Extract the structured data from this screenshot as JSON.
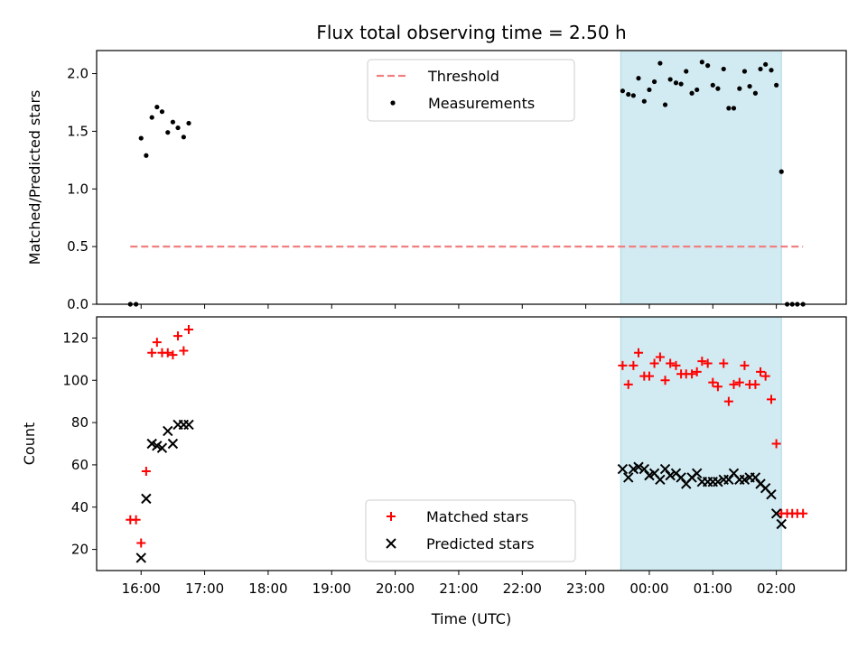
{
  "figure": {
    "title": "Flux total observing time = 2.50 h",
    "xlabel": "Time (UTC)",
    "x_tick_labels": [
      "16:00",
      "17:00",
      "18:00",
      "19:00",
      "20:00",
      "21:00",
      "22:00",
      "23:00",
      "00:00",
      "01:00",
      "02:00"
    ]
  },
  "colors": {
    "threshold": "#f08080",
    "measurements": "#000000",
    "matched": "#ff0000",
    "predicted": "#000000",
    "span_fill": "#add8e6"
  },
  "chart_data": [
    {
      "type": "scatter",
      "ylabel": "Matched/Predicted stars",
      "x_unit": "hours after 16:00 UTC",
      "xlim": [
        -0.7,
        11.1
      ],
      "ylim": [
        0,
        2.2
      ],
      "y_ticks": [
        0.0,
        0.5,
        1.0,
        1.5,
        2.0
      ],
      "y_tick_labels": [
        "0.0",
        "0.5",
        "1.0",
        "1.5",
        "2.0"
      ],
      "observing_span": [
        7.55,
        10.08
      ],
      "legend": {
        "position": "top-center",
        "entries": [
          "Threshold",
          "Measurements"
        ]
      },
      "series": [
        {
          "name": "Threshold",
          "kind": "dashed-line",
          "x": [
            -0.17,
            10.42
          ],
          "y": [
            0.5,
            0.5
          ]
        },
        {
          "name": "Measurements",
          "kind": "dot",
          "points": [
            [
              -0.17,
              0.0
            ],
            [
              -0.08,
              0.0
            ],
            [
              0.0,
              1.44
            ],
            [
              0.08,
              1.29
            ],
            [
              0.17,
              1.62
            ],
            [
              0.25,
              1.71
            ],
            [
              0.33,
              1.67
            ],
            [
              0.42,
              1.49
            ],
            [
              0.5,
              1.58
            ],
            [
              0.58,
              1.53
            ],
            [
              0.67,
              1.45
            ],
            [
              0.75,
              1.57
            ],
            [
              7.58,
              1.85
            ],
            [
              7.67,
              1.82
            ],
            [
              7.75,
              1.81
            ],
            [
              7.83,
              1.96
            ],
            [
              7.92,
              1.76
            ],
            [
              8.0,
              1.86
            ],
            [
              8.08,
              1.93
            ],
            [
              8.17,
              2.09
            ],
            [
              8.25,
              1.73
            ],
            [
              8.33,
              1.95
            ],
            [
              8.42,
              1.92
            ],
            [
              8.5,
              1.91
            ],
            [
              8.58,
              2.02
            ],
            [
              8.67,
              1.83
            ],
            [
              8.75,
              1.86
            ],
            [
              8.83,
              2.1
            ],
            [
              8.92,
              2.07
            ],
            [
              9.0,
              1.9
            ],
            [
              9.08,
              1.87
            ],
            [
              9.17,
              2.04
            ],
            [
              9.25,
              1.7
            ],
            [
              9.33,
              1.7
            ],
            [
              9.42,
              1.87
            ],
            [
              9.5,
              2.02
            ],
            [
              9.58,
              1.89
            ],
            [
              9.67,
              1.83
            ],
            [
              9.75,
              2.04
            ],
            [
              9.83,
              2.08
            ],
            [
              9.92,
              2.03
            ],
            [
              10.0,
              1.9
            ],
            [
              10.08,
              1.15
            ],
            [
              10.17,
              0.0
            ],
            [
              10.25,
              0.0
            ],
            [
              10.33,
              0.0
            ],
            [
              10.42,
              0.0
            ]
          ]
        }
      ]
    },
    {
      "type": "scatter",
      "ylabel": "Count",
      "x_unit": "hours after 16:00 UTC",
      "xlim": [
        -0.7,
        11.1
      ],
      "ylim": [
        10,
        130
      ],
      "y_ticks": [
        20,
        40,
        60,
        80,
        100,
        120
      ],
      "y_tick_labels": [
        "20",
        "40",
        "60",
        "80",
        "100",
        "120"
      ],
      "observing_span": [
        7.55,
        10.08
      ],
      "legend": {
        "position": "lower-center",
        "entries": [
          "Matched stars",
          "Predicted stars"
        ]
      },
      "series": [
        {
          "name": "Matched stars",
          "kind": "plus",
          "points": [
            [
              -0.17,
              34
            ],
            [
              -0.08,
              34
            ],
            [
              0.0,
              23
            ],
            [
              0.08,
              57
            ],
            [
              0.17,
              113
            ],
            [
              0.25,
              118
            ],
            [
              0.33,
              113
            ],
            [
              0.42,
              113
            ],
            [
              0.5,
              112
            ],
            [
              0.58,
              121
            ],
            [
              0.67,
              114
            ],
            [
              0.75,
              124
            ],
            [
              7.58,
              107
            ],
            [
              7.67,
              98
            ],
            [
              7.75,
              107
            ],
            [
              7.83,
              113
            ],
            [
              7.92,
              102
            ],
            [
              8.0,
              102
            ],
            [
              8.08,
              108
            ],
            [
              8.17,
              111
            ],
            [
              8.25,
              100
            ],
            [
              8.33,
              108
            ],
            [
              8.42,
              107
            ],
            [
              8.5,
              103
            ],
            [
              8.58,
              103
            ],
            [
              8.67,
              103
            ],
            [
              8.75,
              104
            ],
            [
              8.83,
              109
            ],
            [
              8.92,
              108
            ],
            [
              9.0,
              99
            ],
            [
              9.08,
              97
            ],
            [
              9.17,
              108
            ],
            [
              9.25,
              90
            ],
            [
              9.33,
              98
            ],
            [
              9.42,
              99
            ],
            [
              9.5,
              107
            ],
            [
              9.58,
              98
            ],
            [
              9.67,
              98
            ],
            [
              9.75,
              104
            ],
            [
              9.83,
              102
            ],
            [
              9.92,
              91
            ],
            [
              10.0,
              70
            ],
            [
              10.08,
              37
            ],
            [
              10.17,
              37
            ],
            [
              10.25,
              37
            ],
            [
              10.33,
              37
            ],
            [
              10.42,
              37
            ]
          ]
        },
        {
          "name": "Predicted stars",
          "kind": "x",
          "points": [
            [
              0.0,
              16
            ],
            [
              0.08,
              44
            ],
            [
              0.17,
              70
            ],
            [
              0.25,
              69
            ],
            [
              0.33,
              68
            ],
            [
              0.42,
              76
            ],
            [
              0.5,
              70
            ],
            [
              0.58,
              79
            ],
            [
              0.67,
              79
            ],
            [
              0.75,
              79
            ],
            [
              7.58,
              58
            ],
            [
              7.67,
              54
            ],
            [
              7.75,
              58
            ],
            [
              7.83,
              59
            ],
            [
              7.92,
              58
            ],
            [
              8.0,
              55
            ],
            [
              8.08,
              56
            ],
            [
              8.17,
              53
            ],
            [
              8.25,
              58
            ],
            [
              8.33,
              55
            ],
            [
              8.42,
              56
            ],
            [
              8.5,
              54
            ],
            [
              8.58,
              51
            ],
            [
              8.67,
              54
            ],
            [
              8.75,
              56
            ],
            [
              8.83,
              52
            ],
            [
              8.92,
              52
            ],
            [
              9.0,
              52
            ],
            [
              9.08,
              52
            ],
            [
              9.17,
              53
            ],
            [
              9.25,
              53
            ],
            [
              9.33,
              56
            ],
            [
              9.42,
              53
            ],
            [
              9.5,
              53
            ],
            [
              9.58,
              54
            ],
            [
              9.67,
              54
            ],
            [
              9.75,
              51
            ],
            [
              9.83,
              49
            ],
            [
              9.92,
              46
            ],
            [
              10.0,
              37
            ],
            [
              10.08,
              32
            ]
          ]
        }
      ]
    }
  ]
}
